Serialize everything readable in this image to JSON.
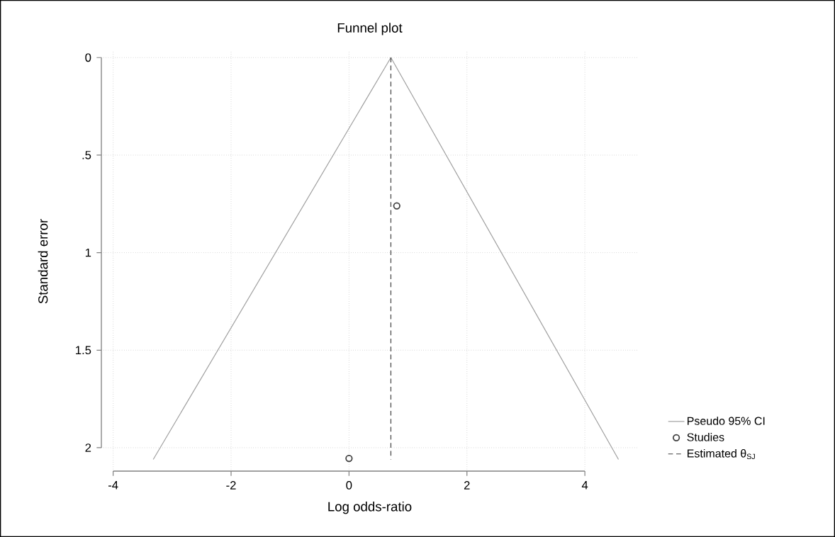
{
  "chart_data": {
    "type": "line",
    "title": "Funnel plot",
    "xlabel": "Log odds-ratio",
    "ylabel": "Standard error",
    "xlim": [
      -4.2,
      4.9
    ],
    "ylim": [
      2.12,
      -0.03
    ],
    "xticks": [
      -4,
      -2,
      0,
      2,
      4
    ],
    "yticks": [
      0,
      {
        "value": 0.5,
        "label": ".5"
      },
      1,
      1.5,
      2
    ],
    "grid": true,
    "legend": "right",
    "series": [
      {
        "name": "Pseudo 95% CI",
        "color": "#a0a0a0",
        "line_style": "solid",
        "x": [
          -3.32,
          0.71,
          4.57
        ],
        "values": [
          2.06,
          0,
          2.06
        ]
      },
      {
        "name": "Studies",
        "type": "scatter",
        "color": "#404040",
        "marker": "circle",
        "x": [
          0.81,
          0
        ],
        "values": [
          0.76,
          2.055
        ]
      },
      {
        "name": "Estimated θ$_{SJ}$",
        "color": "#404040",
        "line_style": "dashed",
        "x": [
          0.71,
          0.71
        ],
        "values": [
          0,
          2.06
        ]
      }
    ]
  }
}
